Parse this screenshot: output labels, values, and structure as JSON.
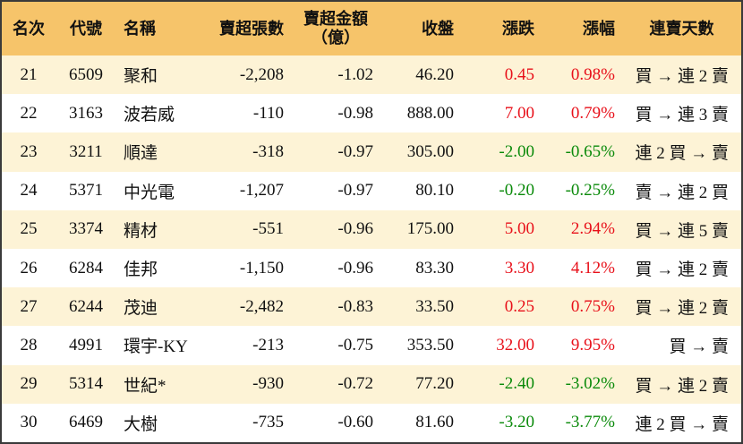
{
  "table": {
    "header": [
      "名次",
      "代號",
      "名稱",
      "賣超張數",
      "賣超金額\n（億）",
      "收盤",
      "漲跌",
      "漲幅",
      "連賣天數"
    ],
    "rows": [
      [
        "21",
        "6509",
        "聚和",
        "-2,208",
        "-1.02",
        "46.20",
        "0.45",
        "0.98%",
        "買 → 連 2 賣"
      ],
      [
        "22",
        "3163",
        "波若威",
        "-110",
        "-0.98",
        "888.00",
        "7.00",
        "0.79%",
        "買 → 連 3 賣"
      ],
      [
        "23",
        "3211",
        "順達",
        "-318",
        "-0.97",
        "305.00",
        "-2.00",
        "-0.65%",
        "連 2 買 → 賣"
      ],
      [
        "24",
        "5371",
        "中光電",
        "-1,207",
        "-0.97",
        "80.10",
        "-0.20",
        "-0.25%",
        "賣 → 連 2 買"
      ],
      [
        "25",
        "3374",
        "精材",
        "-551",
        "-0.96",
        "175.00",
        "5.00",
        "2.94%",
        "買 → 連 5 賣"
      ],
      [
        "26",
        "6284",
        "佳邦",
        "-1,150",
        "-0.96",
        "83.30",
        "3.30",
        "4.12%",
        "買 → 連 2 賣"
      ],
      [
        "27",
        "6244",
        "茂迪",
        "-2,482",
        "-0.83",
        "33.50",
        "0.25",
        "0.75%",
        "買 → 連 2 賣"
      ],
      [
        "28",
        "4991",
        "環宇-KY",
        "-213",
        "-0.75",
        "353.50",
        "32.00",
        "9.95%",
        "買 → 賣"
      ],
      [
        "29",
        "5314",
        "世紀*",
        "-930",
        "-0.72",
        "77.20",
        "-2.40",
        "-3.02%",
        "買 → 連 2 賣"
      ],
      [
        "30",
        "6469",
        "大樹",
        "-735",
        "-0.60",
        "81.60",
        "-3.20",
        "-3.77%",
        "連 2 買 → 賣"
      ]
    ]
  }
}
